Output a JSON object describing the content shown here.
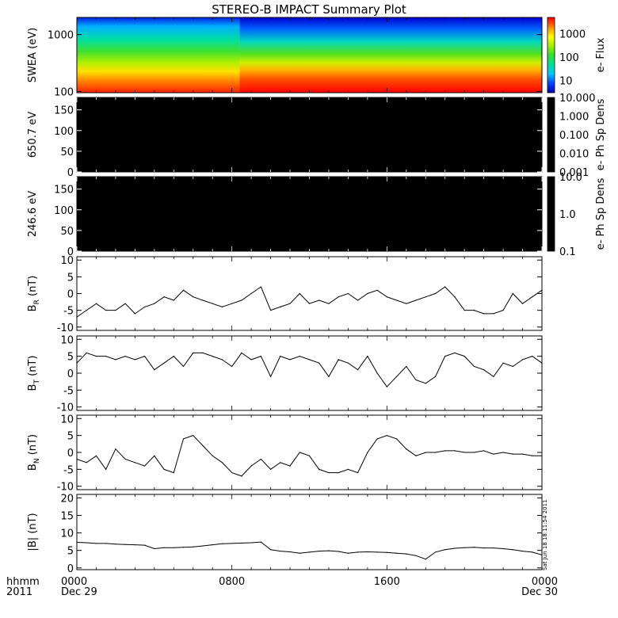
{
  "title": "STEREO-B IMPACT Summary Plot",
  "stamp": "Sat Jun 18 18:11:54 2011",
  "corner": {
    "line1": "hhmm",
    "line2": "2011"
  },
  "chart_data": [
    {
      "type": "heatmap",
      "name": "swea",
      "ylabel": "SWEA (eV)",
      "yscale": "log",
      "ylim": [
        95,
        2000
      ],
      "yticks": [
        "1000",
        "100"
      ],
      "yticks_v": [
        1000,
        100
      ],
      "colorbar": {
        "label": "e- Flux",
        "scale": "log",
        "range": [
          3,
          5000
        ],
        "ticks": [
          "1000",
          "100",
          "10"
        ],
        "ticks_v": [
          1000,
          100,
          10
        ]
      },
      "colors": [
        "#0000b0",
        "#0040ff",
        "#00c8ff",
        "#00e090",
        "#30e030",
        "#a0f000",
        "#ffff00",
        "#ffa000",
        "#ff4000",
        "#ff0000"
      ]
    },
    {
      "type": "heatmap",
      "name": "pad650",
      "ylabel": "650.7 eV",
      "ylim": [
        0,
        180
      ],
      "yticks": [
        "150",
        "100",
        "50",
        "0"
      ],
      "yticks_v": [
        150,
        100,
        50,
        0
      ],
      "fill": "#000000",
      "colorbar": {
        "label": "e- Ph Sp Dens",
        "scale": "log",
        "ticks": [
          "10.000",
          "1.000",
          "0.100",
          "0.010",
          "0.001"
        ],
        "ticks_v": [
          10,
          1,
          0.1,
          0.01,
          0.001
        ],
        "range": [
          0.001,
          10
        ],
        "fill": "#000000"
      }
    },
    {
      "type": "heatmap",
      "name": "pad246",
      "ylabel": "246.6 eV",
      "ylim": [
        0,
        180
      ],
      "yticks": [
        "150",
        "100",
        "50",
        "0"
      ],
      "yticks_v": [
        150,
        100,
        50,
        0
      ],
      "fill": "#000000",
      "colorbar": {
        "label": "e- Ph Sp Dens",
        "scale": "log",
        "ticks": [
          "10.0",
          "1.0",
          "0.1"
        ],
        "ticks_v": [
          10,
          1,
          0.1
        ],
        "range": [
          0.1,
          10
        ],
        "fill": "#000000"
      }
    },
    {
      "type": "line",
      "name": "br",
      "ylabel_main": "B",
      "ylabel_sub": "R",
      "ylabel_tail": " (nT)",
      "ylim": [
        -11,
        11
      ],
      "yticks": [
        "10",
        "5",
        "0",
        "-5",
        "-10"
      ],
      "yticks_v": [
        10,
        5,
        0,
        -5,
        -10
      ],
      "x": [
        0,
        0.5,
        1,
        1.5,
        2,
        2.5,
        3,
        3.5,
        4,
        4.5,
        5,
        5.5,
        6,
        6.5,
        7,
        7.5,
        8,
        8.5,
        9,
        9.5,
        10,
        10.5,
        11,
        11.5,
        12,
        12.5,
        13,
        13.5,
        14,
        14.5,
        15,
        15.5,
        16,
        16.5,
        17,
        17.5,
        18,
        18.5,
        19,
        19.5,
        20,
        20.5,
        21,
        21.5,
        22,
        22.5,
        23,
        23.5,
        24
      ],
      "y": [
        -7,
        -5,
        -3,
        -5,
        -5,
        -3,
        -6,
        -4,
        -3,
        -1,
        -2,
        1,
        -1,
        -2,
        -3,
        -4,
        -3,
        -2,
        0,
        2,
        -5,
        -4,
        -3,
        0,
        -3,
        -2,
        -3,
        -1,
        0,
        -2,
        0,
        1,
        -1,
        -2,
        -3,
        -2,
        -1,
        0,
        2,
        -1,
        -5,
        -5,
        -6,
        -6,
        -5,
        0,
        -3,
        -1,
        1
      ]
    },
    {
      "type": "line",
      "name": "bt",
      "ylabel_main": "B",
      "ylabel_sub": "T",
      "ylabel_tail": " (nT)",
      "ylim": [
        -11,
        11
      ],
      "yticks": [
        "10",
        "5",
        "0",
        "-5",
        "-10"
      ],
      "yticks_v": [
        10,
        5,
        0,
        -5,
        -10
      ],
      "x": [
        0,
        0.5,
        1,
        1.5,
        2,
        2.5,
        3,
        3.5,
        4,
        4.5,
        5,
        5.5,
        6,
        6.5,
        7,
        7.5,
        8,
        8.5,
        9,
        9.5,
        10,
        10.5,
        11,
        11.5,
        12,
        12.5,
        13,
        13.5,
        14,
        14.5,
        15,
        15.5,
        16,
        16.5,
        17,
        17.5,
        18,
        18.5,
        19,
        19.5,
        20,
        20.5,
        21,
        21.5,
        22,
        22.5,
        23,
        23.5,
        24
      ],
      "y": [
        3,
        6,
        5,
        5,
        4,
        5,
        4,
        5,
        1,
        3,
        5,
        2,
        6,
        6,
        5,
        4,
        2,
        6,
        4,
        5,
        -1,
        5,
        4,
        5,
        4,
        3,
        -1,
        4,
        3,
        1,
        5,
        0,
        -4,
        -1,
        2,
        -2,
        -3,
        -1,
        5,
        6,
        5,
        2,
        1,
        -1,
        3,
        2,
        4,
        5,
        3
      ]
    },
    {
      "type": "line",
      "name": "bn",
      "ylabel_main": "B",
      "ylabel_sub": "N",
      "ylabel_tail": " (nT)",
      "ylim": [
        -11,
        11
      ],
      "yticks": [
        "10",
        "5",
        "0",
        "-5",
        "-10"
      ],
      "yticks_v": [
        10,
        5,
        0,
        -5,
        -10
      ],
      "x": [
        0,
        0.5,
        1,
        1.5,
        2,
        2.5,
        3,
        3.5,
        4,
        4.5,
        5,
        5.5,
        6,
        6.5,
        7,
        7.5,
        8,
        8.5,
        9,
        9.5,
        10,
        10.5,
        11,
        11.5,
        12,
        12.5,
        13,
        13.5,
        14,
        14.5,
        15,
        15.5,
        16,
        16.5,
        17,
        17.5,
        18,
        18.5,
        19,
        19.5,
        20,
        20.5,
        21,
        21.5,
        22,
        22.5,
        23,
        23.5,
        24
      ],
      "y": [
        -2,
        -3,
        -1,
        -5,
        1,
        -2,
        -3,
        -4,
        -1,
        -5,
        -6,
        4,
        5,
        2,
        -1,
        -3,
        -6,
        -7,
        -4,
        -2,
        -5,
        -3,
        -4,
        0,
        -1,
        -5,
        -6,
        -6,
        -5,
        -6,
        0,
        4,
        5,
        4,
        1,
        -1,
        0,
        0,
        0.5,
        0.5,
        0,
        0,
        0.5,
        -0.5,
        0,
        -0.5,
        -0.5,
        -1,
        -1
      ]
    },
    {
      "type": "line",
      "name": "bmag",
      "ylabel_main": "|B| (nT)",
      "ylim": [
        -0.5,
        21
      ],
      "yticks": [
        "20",
        "15",
        "10",
        "5",
        "0"
      ],
      "yticks_v": [
        20,
        15,
        10,
        5,
        0
      ],
      "x": [
        0,
        0.5,
        1,
        1.5,
        2,
        2.5,
        3,
        3.5,
        4,
        4.5,
        5,
        5.5,
        6,
        6.5,
        7,
        7.5,
        8,
        8.5,
        9,
        9.5,
        10,
        10.5,
        11,
        11.5,
        12,
        12.5,
        13,
        13.5,
        14,
        14.5,
        15,
        15.5,
        16,
        16.5,
        17,
        17.5,
        18,
        18.5,
        19,
        19.5,
        20,
        20.5,
        21,
        21.5,
        22,
        22.5,
        23,
        23.5,
        24
      ],
      "y": [
        7.3,
        7.2,
        7.0,
        7.0,
        6.8,
        6.7,
        6.6,
        6.5,
        5.5,
        5.8,
        5.8,
        5.9,
        6.0,
        6.3,
        6.6,
        6.9,
        7.0,
        7.1,
        7.2,
        7.4,
        5.2,
        4.8,
        4.6,
        4.2,
        4.5,
        4.8,
        4.9,
        4.7,
        4.2,
        4.5,
        4.6,
        4.5,
        4.4,
        4.2,
        4.0,
        3.5,
        2.5,
        4.5,
        5.2,
        5.6,
        5.8,
        5.9,
        5.7,
        5.7,
        5.5,
        5.2,
        4.8,
        4.5,
        3.7
      ]
    }
  ],
  "xaxis": {
    "ticks": [
      "0000",
      "0800",
      "1600",
      "0000"
    ],
    "ticks_v": [
      0,
      8,
      16,
      24
    ],
    "dates": [
      "Dec 29",
      "Dec 30"
    ],
    "range": [
      0,
      24
    ]
  }
}
